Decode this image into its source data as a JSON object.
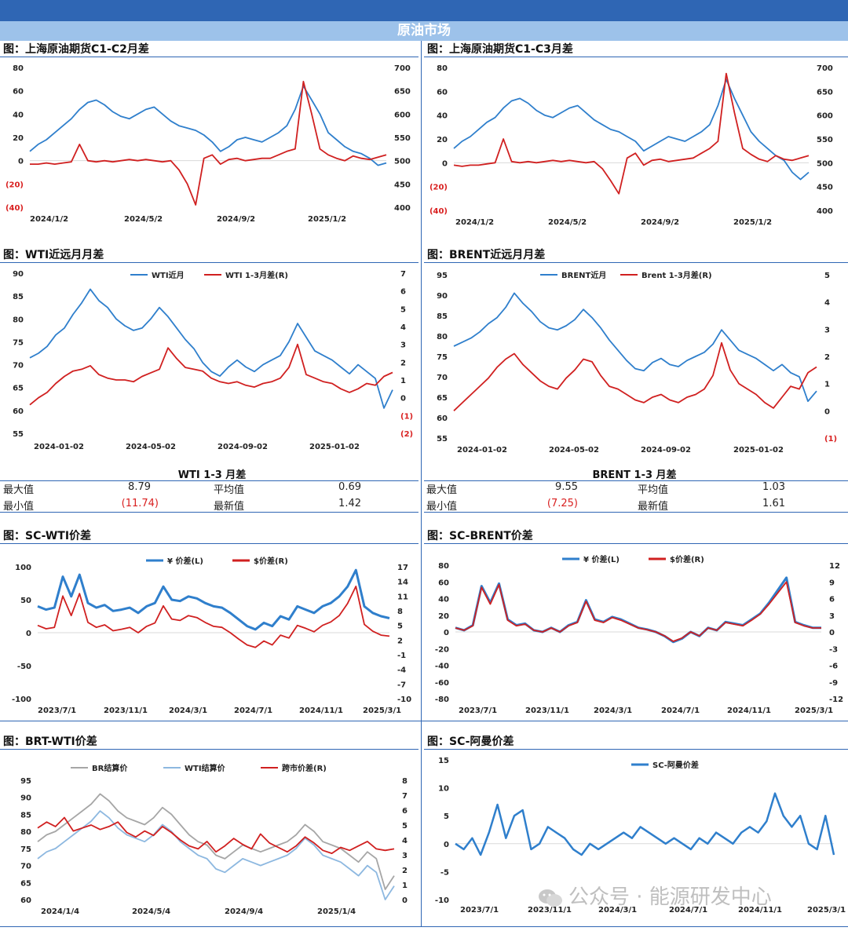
{
  "header": {
    "banner": "原油市场"
  },
  "watermark": "公众号 · 能源研发中心",
  "colors": {
    "blue": "#2F7FCC",
    "red": "#D02020",
    "grey": "#A6A6A6",
    "lightblue": "#8DB8E0",
    "bar": "#2F66B4"
  },
  "panels": [
    {
      "title": "图：上海原油期货C1-C2月差"
    },
    {
      "title": "图：上海原油期货C1-C3月差"
    },
    {
      "title": "图：WTI近远月月差"
    },
    {
      "title": "图：BRENT近远月月差"
    },
    {
      "title": "图：SC-WTI价差"
    },
    {
      "title": "图：SC-BRENT价差"
    },
    {
      "title": "图：BRT-WTI价差"
    },
    {
      "title": "图：SC-阿曼价差"
    }
  ],
  "stats": [
    {
      "title": "WTI 1-3 月差",
      "max_label": "最大值",
      "max": "8.79",
      "avg_label": "平均值",
      "avg": "0.69",
      "min_label": "最小值",
      "min": "(11.74)",
      "latest_label": "最新值",
      "latest": "1.42"
    },
    {
      "title": "BRENT 1-3 月差",
      "max_label": "最大值",
      "max": "9.55",
      "avg_label": "平均值",
      "avg": "1.03",
      "min_label": "最小值",
      "min": "(7.25)",
      "latest_label": "最新值",
      "latest": "1.61"
    }
  ],
  "chart_data": [
    {
      "type": "line",
      "x_ticks": [
        "2024/1/2",
        "2024/5/2",
        "2024/9/2",
        "2025/1/2"
      ],
      "left_ticks": [
        "80",
        "60",
        "40",
        "20",
        "0",
        "(20)",
        "(40)"
      ],
      "right_ticks": [
        "700",
        "650",
        "600",
        "550",
        "500",
        "450",
        "400"
      ],
      "ylim_left": [
        -40,
        80
      ],
      "ylim_right": [
        400,
        700
      ],
      "series": [
        {
          "axis": "right",
          "color": "blue",
          "values": [
            520,
            535,
            545,
            560,
            575,
            590,
            610,
            625,
            630,
            620,
            605,
            595,
            590,
            600,
            610,
            615,
            600,
            585,
            575,
            570,
            565,
            555,
            540,
            520,
            530,
            545,
            550,
            545,
            540,
            550,
            560,
            575,
            610,
            660,
            630,
            600,
            560,
            545,
            530,
            520,
            515,
            505,
            490,
            495
          ]
        },
        {
          "axis": "left",
          "color": "red",
          "values": [
            -3,
            -3,
            -2,
            -3,
            -2,
            -1,
            14,
            0,
            -1,
            0,
            -1,
            0,
            1,
            0,
            1,
            0,
            -1,
            0,
            -8,
            -20,
            -38,
            2,
            5,
            -3,
            1,
            2,
            0,
            1,
            2,
            2,
            5,
            8,
            10,
            68,
            40,
            10,
            5,
            2,
            0,
            4,
            2,
            1,
            3,
            5
          ]
        }
      ]
    },
    {
      "type": "line",
      "x_ticks": [
        "2024/1/2",
        "2024/5/2",
        "2024/9/2",
        "2025/1/2"
      ],
      "left_ticks": [
        "80",
        "60",
        "40",
        "20",
        "0",
        "(20)",
        "(40)"
      ],
      "right_ticks": [
        "700",
        "650",
        "600",
        "550",
        "500",
        "450",
        "400"
      ],
      "ylim_left": [
        -40,
        80
      ],
      "ylim_right": [
        400,
        700
      ],
      "series": [
        {
          "axis": "right",
          "color": "blue",
          "values": [
            530,
            545,
            555,
            570,
            585,
            595,
            615,
            630,
            635,
            625,
            610,
            600,
            595,
            605,
            615,
            620,
            605,
            590,
            580,
            570,
            565,
            555,
            545,
            525,
            535,
            545,
            555,
            550,
            545,
            555,
            565,
            580,
            620,
            675,
            635,
            600,
            565,
            545,
            530,
            515,
            505,
            480,
            465,
            480
          ]
        },
        {
          "axis": "left",
          "color": "red",
          "values": [
            -2,
            -3,
            -2,
            -2,
            -1,
            0,
            20,
            1,
            0,
            1,
            0,
            1,
            2,
            1,
            2,
            1,
            0,
            1,
            -5,
            -15,
            -26,
            4,
            8,
            -2,
            2,
            3,
            1,
            2,
            3,
            4,
            8,
            12,
            18,
            75,
            42,
            12,
            7,
            3,
            1,
            6,
            3,
            2,
            4,
            6
          ]
        }
      ]
    },
    {
      "type": "line",
      "x_ticks": [
        "2024-01-02",
        "2024-05-02",
        "2024-09-02",
        "2025-01-02"
      ],
      "left_ticks": [
        "90",
        "85",
        "80",
        "75",
        "70",
        "65",
        "60",
        "55"
      ],
      "right_ticks": [
        "7",
        "6",
        "5",
        "4",
        "3",
        "2",
        "1",
        "0",
        "(1)",
        "(2)"
      ],
      "ylim_left": [
        55,
        90
      ],
      "ylim_right": [
        -2,
        7
      ],
      "legend": [
        "WTI近月",
        "WTI 1-3月差(R)"
      ],
      "series": [
        {
          "axis": "left",
          "color": "blue",
          "values": [
            71.5,
            72.5,
            74,
            76.5,
            78,
            81,
            83.5,
            86.5,
            84,
            82.5,
            80,
            78.5,
            77.5,
            78,
            80,
            82.5,
            80.5,
            78,
            75.5,
            73.5,
            70.5,
            68.5,
            67.5,
            69.5,
            71,
            69.5,
            68.5,
            70,
            71,
            72,
            75,
            79,
            76,
            73,
            72,
            71,
            69.5,
            68,
            70,
            68.5,
            67,
            60.5,
            64.5
          ]
        },
        {
          "axis": "right",
          "color": "red",
          "values": [
            -0.4,
            0,
            0.3,
            0.8,
            1.2,
            1.5,
            1.6,
            1.8,
            1.3,
            1.1,
            1.0,
            1.0,
            0.9,
            1.2,
            1.4,
            1.6,
            2.8,
            2.2,
            1.7,
            1.6,
            1.5,
            1.1,
            0.9,
            0.8,
            0.9,
            0.7,
            0.6,
            0.8,
            0.9,
            1.1,
            1.7,
            3.0,
            1.3,
            1.1,
            0.9,
            0.8,
            0.5,
            0.3,
            0.5,
            0.8,
            0.7,
            1.2,
            1.42
          ]
        }
      ]
    },
    {
      "type": "line",
      "x_ticks": [
        "2024-01-02",
        "2024-05-02",
        "2024-09-02",
        "2025-01-02"
      ],
      "left_ticks": [
        "95",
        "90",
        "85",
        "80",
        "75",
        "70",
        "65",
        "60",
        "55"
      ],
      "right_ticks": [
        "5",
        "4",
        "3",
        "2",
        "1",
        "0",
        "(1)"
      ],
      "ylim_left": [
        55,
        95
      ],
      "ylim_right": [
        -1,
        5
      ],
      "legend": [
        "BRENT近月",
        "Brent 1-3月差(R)"
      ],
      "series": [
        {
          "axis": "left",
          "color": "blue",
          "values": [
            77.5,
            78.5,
            79.5,
            81,
            83,
            84.5,
            87,
            90.5,
            88,
            86,
            83.5,
            82,
            81.5,
            82.5,
            84,
            86.5,
            84.5,
            82,
            79,
            76.5,
            74,
            72,
            71.5,
            73.5,
            74.5,
            73,
            72.5,
            74,
            75,
            76,
            78,
            81.5,
            79,
            76.5,
            75.5,
            74.5,
            73,
            71.5,
            73,
            71,
            70,
            64,
            66.5
          ]
        },
        {
          "axis": "right",
          "color": "red",
          "values": [
            0.0,
            0.3,
            0.6,
            0.9,
            1.2,
            1.6,
            1.9,
            2.1,
            1.7,
            1.4,
            1.1,
            0.9,
            0.8,
            1.2,
            1.5,
            1.9,
            1.8,
            1.3,
            0.9,
            0.8,
            0.6,
            0.4,
            0.3,
            0.5,
            0.6,
            0.4,
            0.3,
            0.5,
            0.6,
            0.8,
            1.3,
            2.5,
            1.5,
            1.0,
            0.8,
            0.6,
            0.3,
            0.1,
            0.5,
            0.9,
            0.8,
            1.4,
            1.61
          ]
        }
      ]
    },
    {
      "type": "line",
      "x_ticks": [
        "2023/7/1",
        "2023/11/1",
        "2024/3/1",
        "2024/7/1",
        "2024/11/1",
        "2025/3/1"
      ],
      "left_ticks": [
        "100",
        "50",
        "0",
        "-50",
        "-100"
      ],
      "right_ticks": [
        "17",
        "14",
        "11",
        "8",
        "5",
        "2",
        "-1",
        "-4",
        "-7",
        "-10"
      ],
      "ylim_left": [
        -100,
        100
      ],
      "ylim_right": [
        -10,
        17
      ],
      "legend": [
        "¥ 价差(L)",
        "$价差(R)"
      ],
      "series": [
        {
          "axis": "left",
          "color": "blue",
          "values": [
            40,
            35,
            38,
            85,
            55,
            88,
            45,
            38,
            42,
            33,
            35,
            38,
            30,
            40,
            45,
            70,
            50,
            48,
            55,
            52,
            45,
            40,
            38,
            30,
            20,
            10,
            5,
            15,
            10,
            25,
            20,
            40,
            35,
            30,
            40,
            45,
            55,
            70,
            95,
            40,
            30,
            25,
            22
          ]
        },
        {
          "axis": "right",
          "color": "red",
          "values": [
            5.0,
            4.3,
            4.6,
            11.0,
            7.0,
            11.5,
            5.6,
            4.6,
            5.1,
            3.9,
            4.2,
            4.6,
            3.5,
            4.8,
            5.5,
            9.0,
            6.3,
            6.0,
            7.0,
            6.6,
            5.6,
            4.8,
            4.6,
            3.5,
            2.2,
            1.0,
            0.5,
            1.8,
            1.0,
            3.0,
            2.4,
            5.0,
            4.4,
            3.7,
            5.0,
            5.7,
            7.0,
            9.5,
            13.0,
            5.2,
            3.8,
            3.0,
            2.8
          ]
        }
      ]
    },
    {
      "type": "line",
      "x_ticks": [
        "2023/7/1",
        "2023/11/1",
        "2024/3/1",
        "2024/7/1",
        "2024/11/1",
        "2025/3/1"
      ],
      "left_ticks": [
        "80",
        "60",
        "40",
        "20",
        "0",
        "-20",
        "-40",
        "-60",
        "-80"
      ],
      "right_ticks": [
        "12",
        "9",
        "6",
        "3",
        "0",
        "-3",
        "-6",
        "-9",
        "-12"
      ],
      "ylim_left": [
        -80,
        80
      ],
      "ylim_right": [
        -12,
        12
      ],
      "legend": [
        "¥ 价差(L)",
        "$价差(R)"
      ],
      "series": [
        {
          "axis": "left",
          "color": "blue",
          "values": [
            5,
            2,
            8,
            55,
            35,
            58,
            15,
            8,
            10,
            2,
            0,
            5,
            0,
            8,
            12,
            38,
            15,
            12,
            18,
            15,
            10,
            5,
            3,
            0,
            -5,
            -12,
            -8,
            0,
            -5,
            5,
            2,
            12,
            10,
            8,
            15,
            22,
            35,
            50,
            65,
            12,
            8,
            5,
            5
          ]
        },
        {
          "axis": "right",
          "color": "red",
          "values": [
            0.7,
            0.3,
            1.1,
            8.0,
            5.0,
            8.5,
            2.1,
            1.1,
            1.4,
            0.3,
            0.0,
            0.7,
            0.0,
            1.1,
            1.7,
            5.5,
            2.1,
            1.7,
            2.6,
            2.1,
            1.4,
            0.7,
            0.4,
            0.0,
            -0.7,
            -1.7,
            -1.1,
            0.0,
            -0.7,
            0.7,
            0.3,
            1.7,
            1.4,
            1.1,
            2.1,
            3.2,
            5.0,
            7.0,
            9.0,
            1.7,
            1.1,
            0.7,
            0.7
          ]
        }
      ]
    },
    {
      "type": "line",
      "x_ticks": [
        "2024/1/4",
        "2024/5/4",
        "2024/9/4",
        "2025/1/4"
      ],
      "left_ticks": [
        "95",
        "90",
        "85",
        "80",
        "75",
        "70",
        "65",
        "60"
      ],
      "right_ticks": [
        "8",
        "7",
        "6",
        "5",
        "4",
        "3",
        "2",
        "1",
        "0"
      ],
      "ylim_left": [
        60,
        95
      ],
      "ylim_right": [
        0,
        8
      ],
      "legend": [
        "BR结算价",
        "WTI结算价",
        "跨市价差(R)"
      ],
      "series": [
        {
          "axis": "left",
          "color": "grey",
          "values": [
            77,
            79,
            80,
            82,
            84,
            86,
            88,
            91,
            89,
            86,
            84,
            83,
            82,
            84,
            87,
            85,
            82,
            79,
            77,
            76,
            73,
            72,
            74,
            76,
            75,
            74,
            75,
            76,
            77,
            79,
            82,
            80,
            77,
            76,
            75,
            73,
            71,
            74,
            72,
            63,
            67
          ]
        },
        {
          "axis": "left",
          "color": "lightblue",
          "values": [
            72,
            74,
            75,
            77,
            79,
            81,
            83,
            86,
            84,
            81,
            79,
            78,
            77,
            79,
            82,
            80,
            77,
            75,
            73,
            72,
            69,
            68,
            70,
            72,
            71,
            70,
            71,
            72,
            73,
            75,
            78,
            76,
            73,
            72,
            71,
            69,
            67,
            70,
            68,
            60,
            64
          ]
        },
        {
          "axis": "right",
          "color": "red",
          "values": [
            4.8,
            5.2,
            4.9,
            5.5,
            4.6,
            4.8,
            5.0,
            4.7,
            4.9,
            5.2,
            4.5,
            4.2,
            4.6,
            4.3,
            4.9,
            4.5,
            4.0,
            3.6,
            3.4,
            3.9,
            3.2,
            3.6,
            4.1,
            3.7,
            3.4,
            4.4,
            3.8,
            3.5,
            3.2,
            3.6,
            4.2,
            3.8,
            3.3,
            3.1,
            3.5,
            3.3,
            3.6,
            3.9,
            3.4,
            3.3,
            3.4
          ]
        }
      ]
    },
    {
      "type": "line",
      "x_ticks": [
        "2023/7/1",
        "2023/11/1",
        "2024/3/1",
        "2024/7/1",
        "2024/11/1",
        "2025/3/1"
      ],
      "left_ticks": [
        "15",
        "10",
        "5",
        "0",
        "-5",
        "-10"
      ],
      "ylim_left": [
        -10,
        15
      ],
      "legend": [
        "SC-阿曼价差"
      ],
      "series": [
        {
          "axis": "left",
          "color": "blue",
          "values": [
            0,
            -1,
            1,
            -2,
            2,
            7,
            1,
            5,
            6,
            -1,
            0,
            3,
            2,
            1,
            -1,
            -2,
            0,
            -1,
            0,
            1,
            2,
            1,
            3,
            2,
            1,
            0,
            1,
            0,
            -1,
            1,
            0,
            2,
            1,
            0,
            2,
            3,
            2,
            4,
            9,
            5,
            3,
            5,
            0,
            -1,
            5,
            -2
          ]
        }
      ]
    }
  ]
}
